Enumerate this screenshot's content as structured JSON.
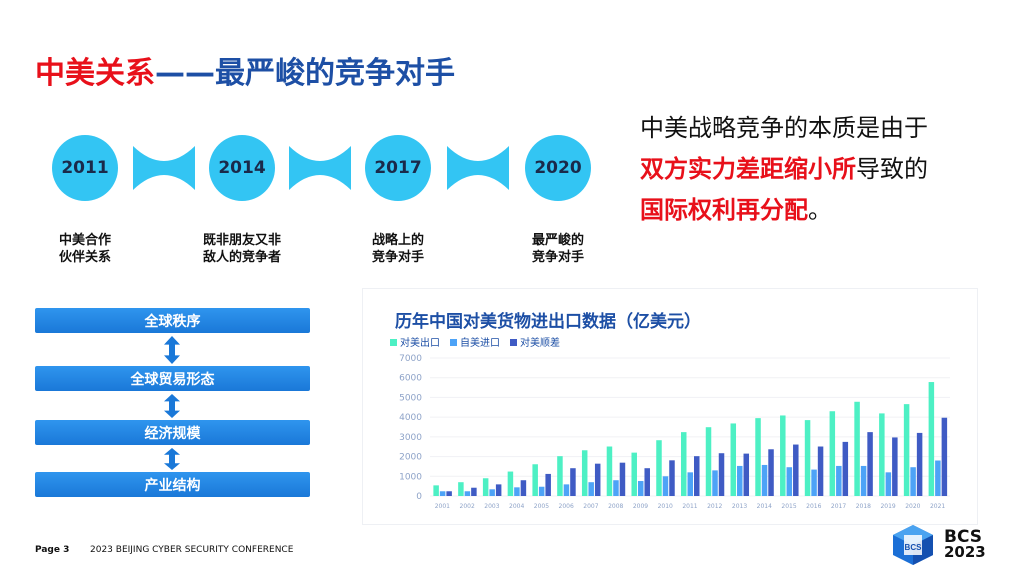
{
  "title": {
    "part1": "中美关系",
    "part2": "——最严峻的竞争对手"
  },
  "timeline": [
    {
      "year": "2011",
      "label1": "中美合作",
      "label2": "伙伴关系"
    },
    {
      "year": "2014",
      "label1": "既非朋友又非",
      "label2": "敌人的竞争者"
    },
    {
      "year": "2017",
      "label1": "战略上的",
      "label2": "竞争对手"
    },
    {
      "year": "2020",
      "label1": "最严峻的",
      "label2": "竞争对手"
    }
  ],
  "statement": {
    "line1": "中美战略竞争的本质是由于",
    "line2_red": "双方实力差距缩小所",
    "line2_black": "导致的",
    "line3_red": "国际权利再分配",
    "line3_black": "。"
  },
  "stack": [
    "全球秩序",
    "全球贸易形态",
    "经济规模",
    "产业结构"
  ],
  "colors": {
    "red": "#e8101a",
    "blue": "#1d4fa5",
    "cyan": "#33c5f3",
    "export": "#4df0c4",
    "import": "#4da3f7",
    "diff": "#3f5bc4"
  },
  "chart_data": {
    "type": "bar",
    "title": "历年中国对美货物进出口数据（亿美元）",
    "categories": [
      "2001",
      "2002",
      "2003",
      "2004",
      "2005",
      "2006",
      "2007",
      "2008",
      "2009",
      "2010",
      "2011",
      "2012",
      "2013",
      "2014",
      "2015",
      "2016",
      "2017",
      "2018",
      "2019",
      "2020",
      "2021"
    ],
    "series": [
      {
        "name": "对美出口",
        "values": [
          540,
          700,
          900,
          1240,
          1610,
          2020,
          2320,
          2510,
          2200,
          2830,
          3240,
          3490,
          3680,
          3950,
          4085,
          3850,
          4300,
          4780,
          4190,
          4660,
          5780
        ]
      },
      {
        "name": "自美进口",
        "values": [
          240,
          240,
          340,
          440,
          470,
          590,
          700,
          800,
          760,
          1000,
          1200,
          1300,
          1525,
          1575,
          1460,
          1340,
          1525,
          1525,
          1200,
          1460,
          1800
        ]
      },
      {
        "name": "对美顺差",
        "values": [
          240,
          420,
          590,
          800,
          1120,
          1410,
          1640,
          1690,
          1410,
          1810,
          2020,
          2170,
          2150,
          2370,
          2610,
          2510,
          2745,
          3240,
          2970,
          3200,
          3970
        ]
      }
    ],
    "yticks": [
      "0",
      "1000",
      "2000",
      "3000",
      "4000",
      "5000",
      "6000",
      "7000"
    ],
    "ylim": [
      0,
      7000
    ],
    "grid": true,
    "legend": "top-left"
  },
  "footer": {
    "page": "Page 3",
    "conference": "2023 BEIJING CYBER SECURITY CONFERENCE"
  },
  "logo": {
    "text1": "BCS",
    "text2": "2023",
    "cube": "BCS"
  }
}
